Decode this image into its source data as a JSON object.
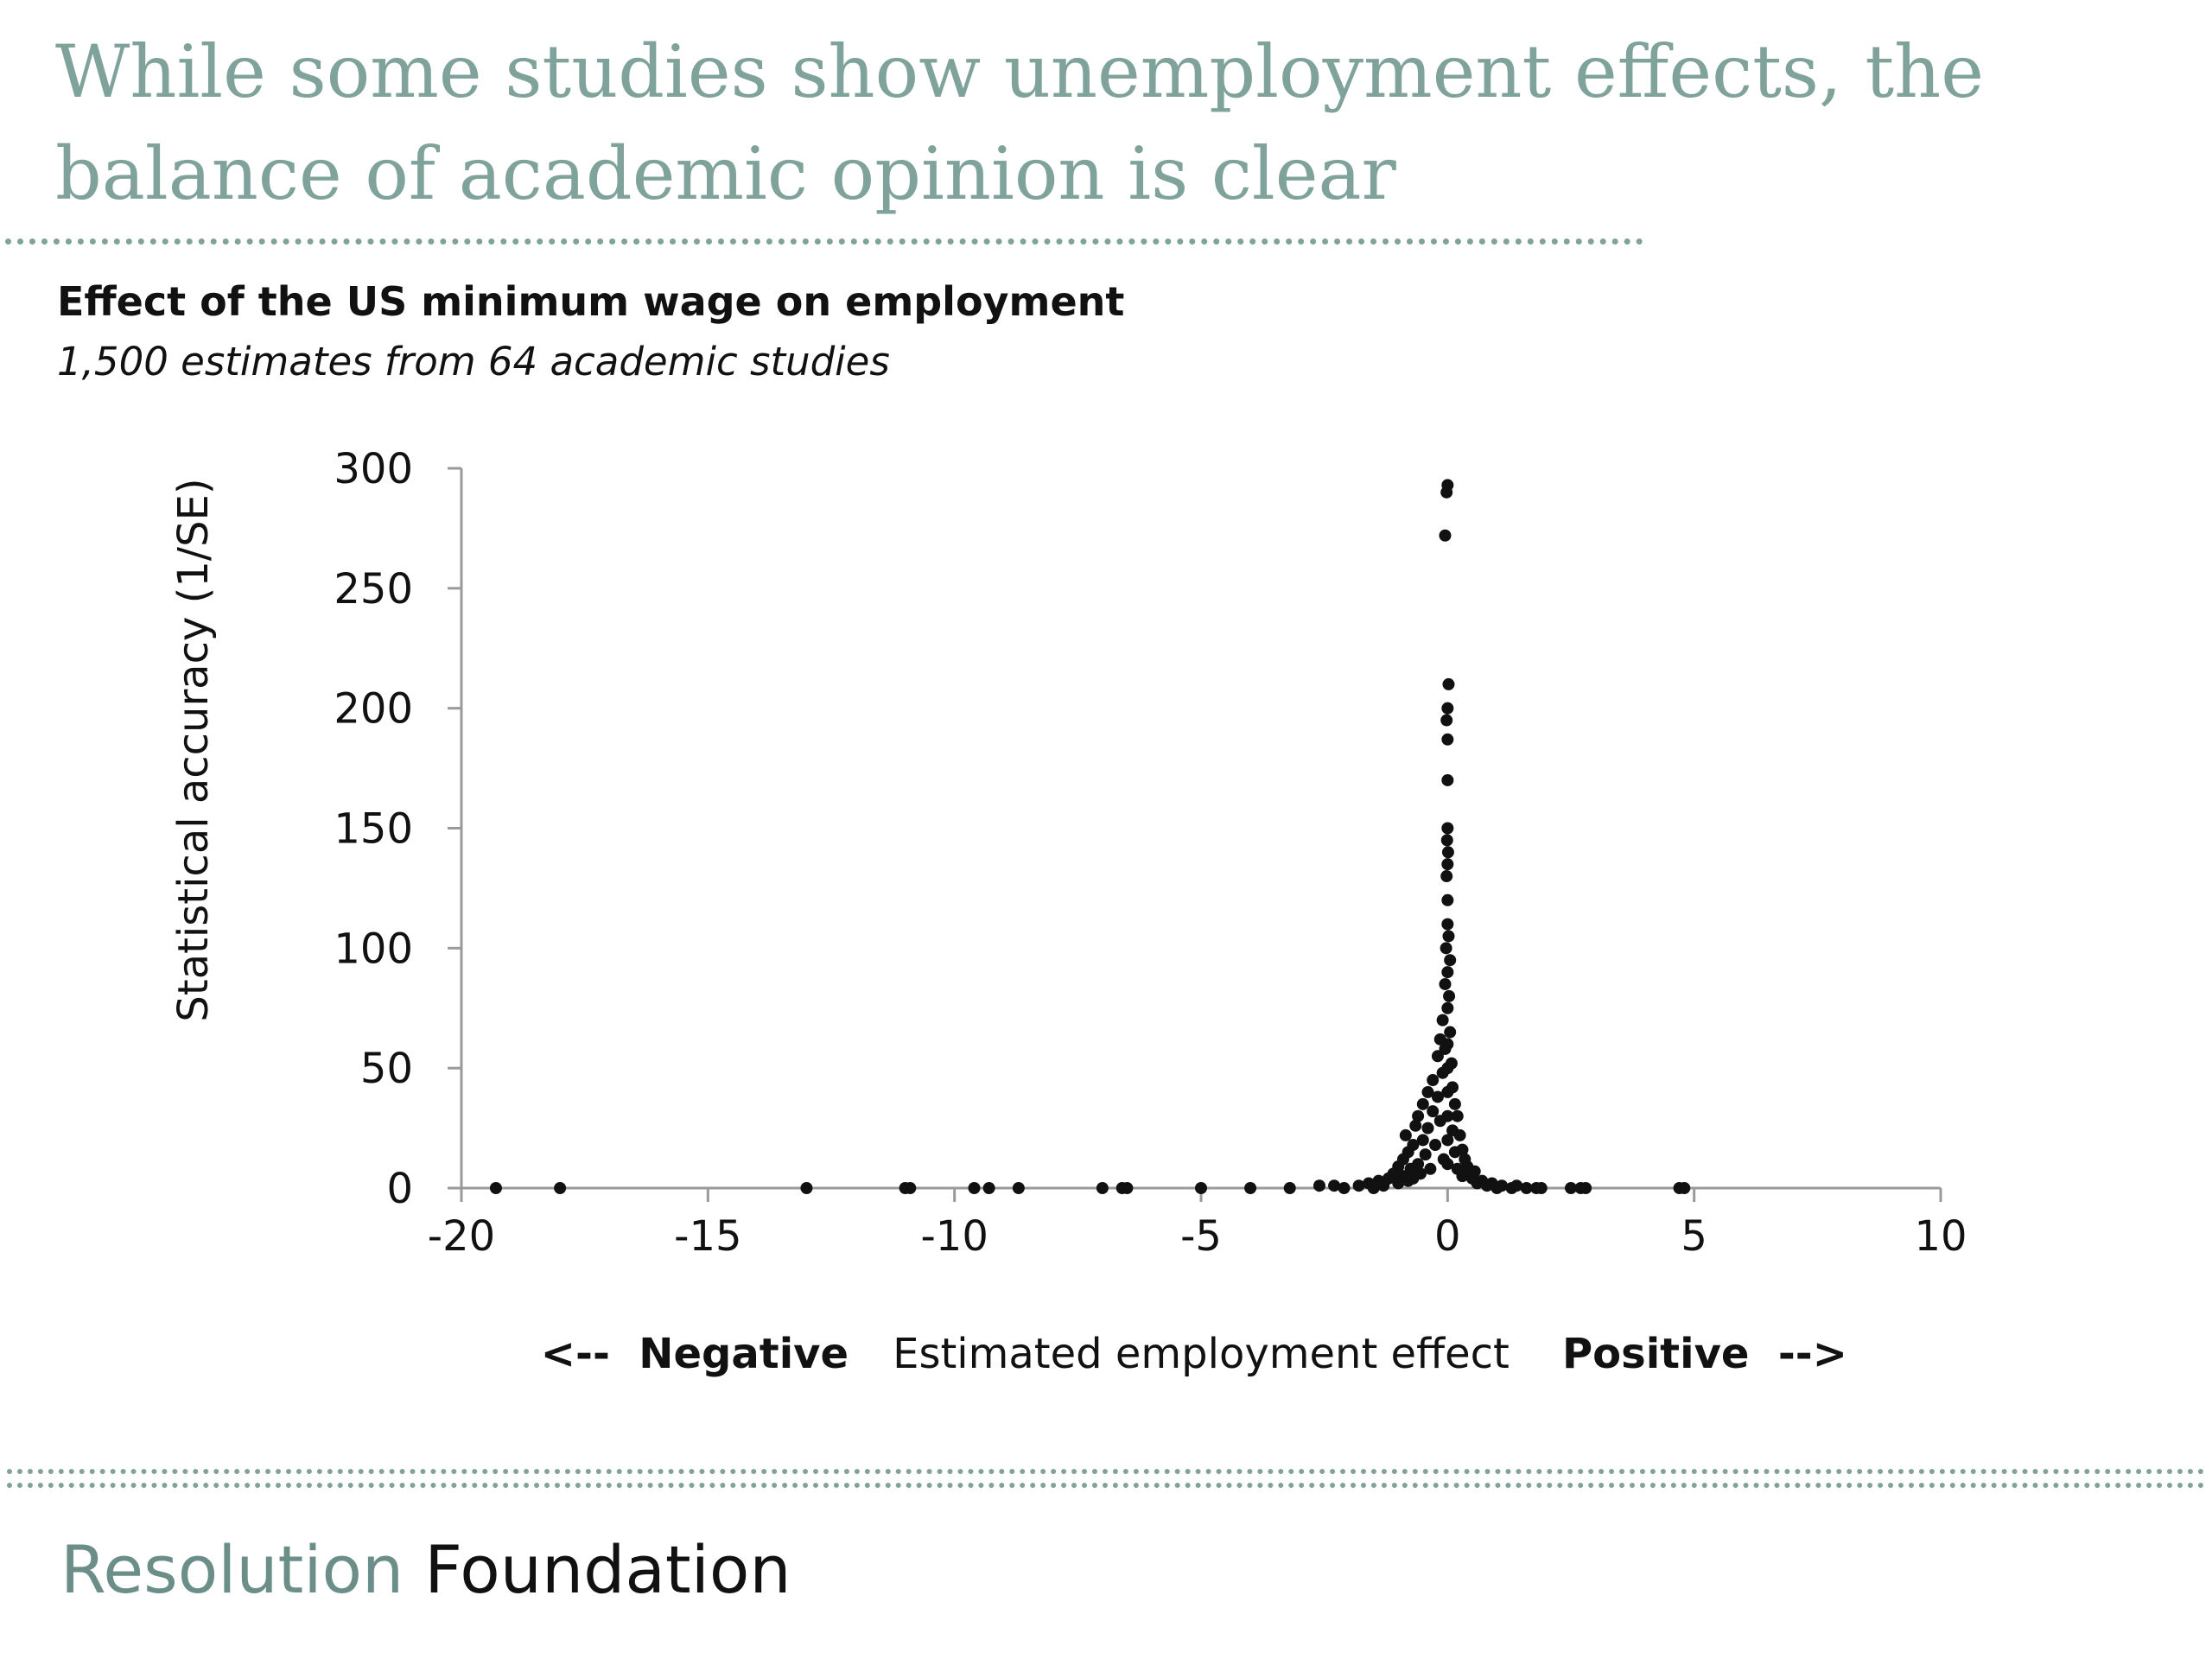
{
  "slide": {
    "title": "While some studies show unemployment effects, the balance of academic opinion is clear"
  },
  "chart_data": {
    "type": "scatter",
    "title": "Effect of the US minimum wage on employment",
    "subtitle": "1,500 estimates from 64 academic studies",
    "xlabel": "Estimated employment effect",
    "ylabel": "Statistical accuracy (1/SE)",
    "xlabel_left": "<--  Negative",
    "xlabel_right": "Positive  -->",
    "xlim": [
      -20,
      10
    ],
    "ylim": [
      0,
      300
    ],
    "xticks": [
      -20,
      -15,
      -10,
      -5,
      0,
      5,
      10
    ],
    "yticks": [
      0,
      50,
      100,
      150,
      200,
      250,
      300
    ],
    "grid": false,
    "marker_color": "#111111",
    "points": [
      {
        "x": -19.3,
        "y": 0
      },
      {
        "x": -18.0,
        "y": 0
      },
      {
        "x": -13.0,
        "y": 0
      },
      {
        "x": -11.0,
        "y": 0
      },
      {
        "x": -10.9,
        "y": 0
      },
      {
        "x": -9.6,
        "y": 0
      },
      {
        "x": -9.3,
        "y": 0
      },
      {
        "x": -8.7,
        "y": 0
      },
      {
        "x": -7.0,
        "y": 0
      },
      {
        "x": -6.6,
        "y": 0
      },
      {
        "x": -6.5,
        "y": 0
      },
      {
        "x": -5.0,
        "y": 0
      },
      {
        "x": -4.0,
        "y": 0
      },
      {
        "x": -3.2,
        "y": 0
      },
      {
        "x": -2.6,
        "y": 1
      },
      {
        "x": -2.3,
        "y": 1
      },
      {
        "x": -2.1,
        "y": 0
      },
      {
        "x": -1.8,
        "y": 1
      },
      {
        "x": -1.6,
        "y": 2
      },
      {
        "x": -1.5,
        "y": 0
      },
      {
        "x": -1.4,
        "y": 3
      },
      {
        "x": -1.3,
        "y": 1
      },
      {
        "x": -1.2,
        "y": 4
      },
      {
        "x": -1.1,
        "y": 6
      },
      {
        "x": -1.0,
        "y": 2
      },
      {
        "x": -1.0,
        "y": 9
      },
      {
        "x": -0.9,
        "y": 5
      },
      {
        "x": -0.9,
        "y": 12
      },
      {
        "x": -0.85,
        "y": 22
      },
      {
        "x": -0.8,
        "y": 3
      },
      {
        "x": -0.8,
        "y": 15
      },
      {
        "x": -0.75,
        "y": 8
      },
      {
        "x": -0.7,
        "y": 18
      },
      {
        "x": -0.7,
        "y": 4
      },
      {
        "x": -0.65,
        "y": 26
      },
      {
        "x": -0.6,
        "y": 10
      },
      {
        "x": -0.6,
        "y": 30
      },
      {
        "x": -0.55,
        "y": 6
      },
      {
        "x": -0.5,
        "y": 20
      },
      {
        "x": -0.5,
        "y": 35
      },
      {
        "x": -0.45,
        "y": 14
      },
      {
        "x": -0.4,
        "y": 40
      },
      {
        "x": -0.4,
        "y": 25
      },
      {
        "x": -0.35,
        "y": 8
      },
      {
        "x": -0.3,
        "y": 45
      },
      {
        "x": -0.3,
        "y": 32
      },
      {
        "x": -0.25,
        "y": 18
      },
      {
        "x": -0.2,
        "y": 55
      },
      {
        "x": -0.2,
        "y": 38
      },
      {
        "x": -0.15,
        "y": 62
      },
      {
        "x": -0.15,
        "y": 28
      },
      {
        "x": -0.1,
        "y": 70
      },
      {
        "x": -0.1,
        "y": 48
      },
      {
        "x": -0.08,
        "y": 12
      },
      {
        "x": -0.05,
        "y": 85
      },
      {
        "x": -0.05,
        "y": 58
      },
      {
        "x": -0.03,
        "y": 100
      },
      {
        "x": -0.02,
        "y": 130
      },
      {
        "x": -0.01,
        "y": 145
      },
      {
        "x": 0.0,
        "y": 10
      },
      {
        "x": 0.0,
        "y": 20
      },
      {
        "x": 0.0,
        "y": 30
      },
      {
        "x": 0.0,
        "y": 40
      },
      {
        "x": 0.0,
        "y": 50
      },
      {
        "x": 0.0,
        "y": 60
      },
      {
        "x": 0.0,
        "y": 75
      },
      {
        "x": 0.0,
        "y": 90
      },
      {
        "x": 0.0,
        "y": 110
      },
      {
        "x": 0.0,
        "y": 120
      },
      {
        "x": 0.0,
        "y": 135
      },
      {
        "x": 0.0,
        "y": 150
      },
      {
        "x": 0.0,
        "y": 170
      },
      {
        "x": 0.0,
        "y": 187
      },
      {
        "x": -0.02,
        "y": 195
      },
      {
        "x": 0.0,
        "y": 200
      },
      {
        "x": 0.02,
        "y": 210
      },
      {
        "x": -0.05,
        "y": 272
      },
      {
        "x": -0.02,
        "y": 290
      },
      {
        "x": 0.0,
        "y": 293
      },
      {
        "x": 0.01,
        "y": 140
      },
      {
        "x": 0.02,
        "y": 105
      },
      {
        "x": 0.03,
        "y": 80
      },
      {
        "x": 0.05,
        "y": 95
      },
      {
        "x": 0.05,
        "y": 65
      },
      {
        "x": 0.08,
        "y": 52
      },
      {
        "x": 0.1,
        "y": 42
      },
      {
        "x": 0.1,
        "y": 24
      },
      {
        "x": 0.15,
        "y": 35
      },
      {
        "x": 0.15,
        "y": 15
      },
      {
        "x": 0.2,
        "y": 30
      },
      {
        "x": 0.2,
        "y": 8
      },
      {
        "x": 0.25,
        "y": 22
      },
      {
        "x": 0.3,
        "y": 16
      },
      {
        "x": 0.3,
        "y": 5
      },
      {
        "x": 0.35,
        "y": 12
      },
      {
        "x": 0.4,
        "y": 9
      },
      {
        "x": 0.45,
        "y": 6
      },
      {
        "x": 0.5,
        "y": 4
      },
      {
        "x": 0.55,
        "y": 7
      },
      {
        "x": 0.6,
        "y": 2
      },
      {
        "x": 0.7,
        "y": 3
      },
      {
        "x": 0.8,
        "y": 1
      },
      {
        "x": 0.9,
        "y": 2
      },
      {
        "x": 1.0,
        "y": 0
      },
      {
        "x": 1.1,
        "y": 1
      },
      {
        "x": 1.3,
        "y": 0
      },
      {
        "x": 1.4,
        "y": 1
      },
      {
        "x": 1.6,
        "y": 0
      },
      {
        "x": 1.8,
        "y": 0
      },
      {
        "x": 1.9,
        "y": 0
      },
      {
        "x": 2.5,
        "y": 0
      },
      {
        "x": 2.7,
        "y": 0
      },
      {
        "x": 2.8,
        "y": 0
      },
      {
        "x": 4.7,
        "y": 0
      },
      {
        "x": 4.8,
        "y": 0
      }
    ]
  },
  "footer": {
    "brand_part1": "Resolution",
    "brand_part2": "Foundation"
  }
}
